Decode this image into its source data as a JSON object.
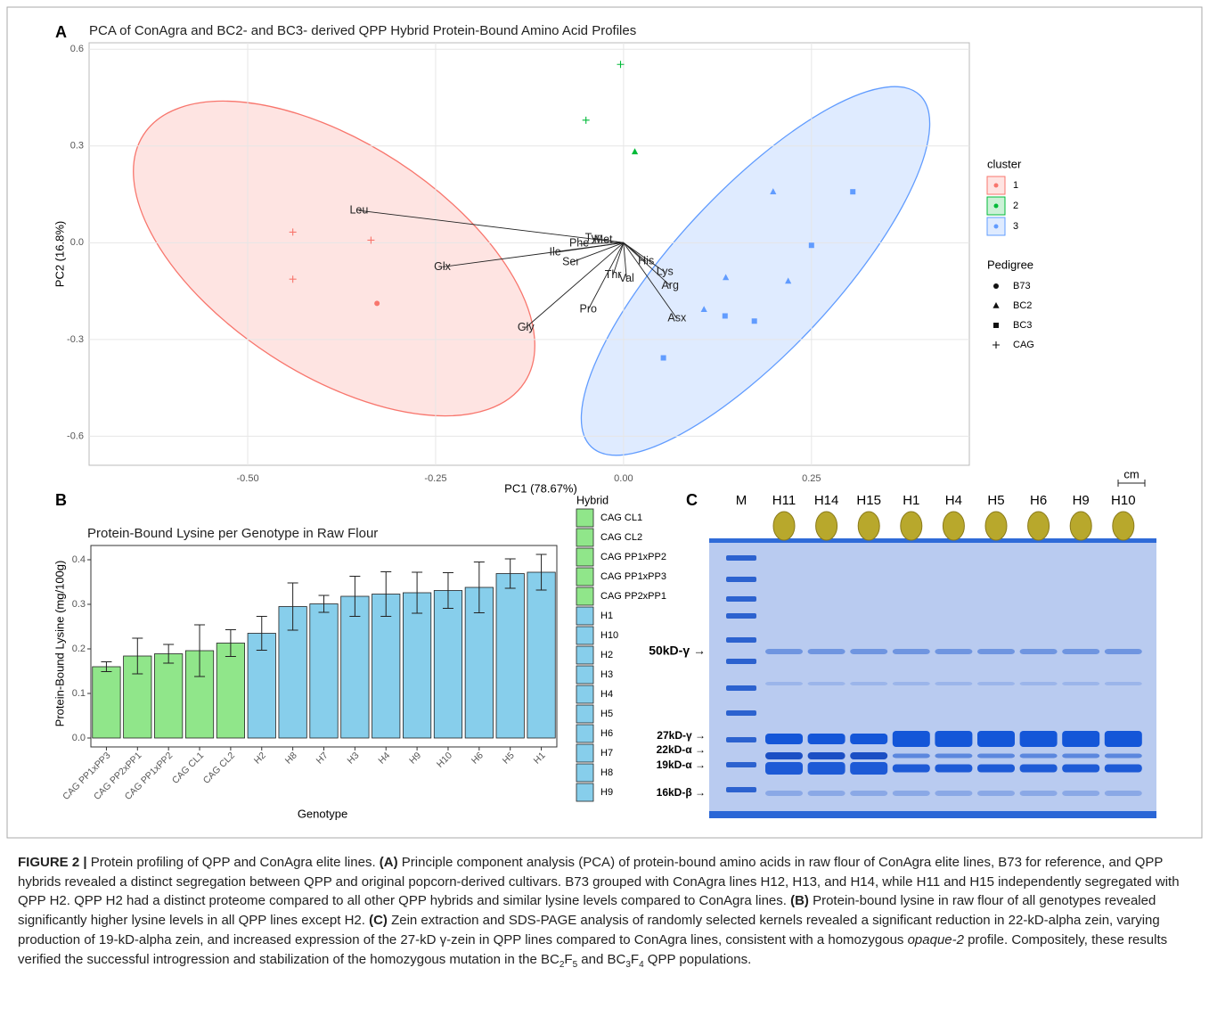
{
  "chart_data": [
    {
      "type": "scatter",
      "panel_label": "A",
      "title": "PCA of ConAgra and BC2- and BC3- derived QPP Hybrid Protein-Bound Amino Acid Profiles",
      "x_label": "PC1 (78.67%)",
      "y_label": "PC2 (16.8%)",
      "xlim": [
        -0.711,
        0.46
      ],
      "ylim": [
        -0.69,
        0.62
      ],
      "xticks": [
        {
          "value": -0.5,
          "label": "-0.50"
        },
        -0.25,
        {
          "value": 0,
          "label": "0.00"
        },
        0.25
      ],
      "yticks": [
        0.6,
        0.3,
        {
          "value": 0,
          "label": "0.0"
        },
        -0.3,
        -0.6
      ],
      "grid": true,
      "cluster_legend": {
        "title": "cluster",
        "entries": [
          {
            "label": "1",
            "color": "#f8766d"
          },
          {
            "label": "2",
            "color": "#00ba38"
          },
          {
            "label": "3",
            "color": "#619cff"
          }
        ]
      },
      "pedigree_legend": {
        "title": "Pedigree",
        "entries": [
          {
            "label": "B73",
            "shape": "circle"
          },
          {
            "label": "BC2",
            "shape": "triangle"
          },
          {
            "label": "BC3",
            "shape": "square"
          },
          {
            "label": "CAG",
            "shape": "plus"
          }
        ]
      },
      "series": [
        {
          "cluster": "1",
          "pedigree": "CAG",
          "x": [
            -0.44,
            -0.336,
            -0.44
          ],
          "y": [
            0.033,
            0.008,
            -0.113
          ]
        },
        {
          "cluster": "1",
          "pedigree": "B73",
          "x": [
            -0.328
          ],
          "y": [
            -0.188
          ]
        },
        {
          "cluster": "2",
          "pedigree": "CAG",
          "x": [
            -0.004,
            -0.05
          ],
          "y": [
            0.553,
            0.38
          ]
        },
        {
          "cluster": "2",
          "pedigree": "BC2",
          "x": [
            0.015
          ],
          "y": [
            0.282
          ]
        },
        {
          "cluster": "3",
          "pedigree": "BC2",
          "x": [
            0.199,
            0.136,
            0.219,
            0.107
          ],
          "y": [
            0.158,
            -0.108,
            -0.119,
            -0.207
          ]
        },
        {
          "cluster": "3",
          "pedigree": "BC3",
          "x": [
            0.305,
            0.25,
            0.135,
            0.174,
            0.053
          ],
          "y": [
            0.158,
            -0.008,
            -0.227,
            -0.243,
            -0.357
          ]
        }
      ],
      "loadings": {
        "labels": [
          "Leu",
          "Glx",
          "Ile",
          "Ser",
          "Phe",
          "Tyr",
          "Met",
          "Thr",
          "Val",
          "Pro",
          "Gly",
          "His",
          "Lys",
          "Arg",
          "Asx"
        ],
        "x": [
          -0.352,
          -0.241,
          -0.091,
          -0.07,
          -0.059,
          -0.041,
          -0.027,
          -0.014,
          0.004,
          -0.047,
          -0.13,
          0.03,
          0.055,
          0.062,
          0.071
        ],
        "y": [
          0.1,
          -0.075,
          -0.03,
          -0.061,
          -0.003,
          0.014,
          0.008,
          -0.1,
          -0.111,
          -0.207,
          -0.263,
          -0.058,
          -0.091,
          -0.133,
          -0.235
        ]
      }
    },
    {
      "type": "bar",
      "panel_label": "B",
      "title": "Protein-Bound Lysine per Genotype in Raw Flour",
      "x_label": "Genotype",
      "y_label": "Protein-Bound Lysine (mg/100g)",
      "ylim": [
        -0.02,
        0.432
      ],
      "yticks": [
        {
          "value": 0,
          "label": "0.0"
        },
        0.1,
        0.2,
        0.3,
        0.4
      ],
      "categories": [
        "CAG PP1xPP3",
        "CAG PP2xPP1",
        "CAG PP1xPP2",
        "CAG CL1",
        "CAG CL2",
        "H2",
        "H8",
        "H7",
        "H3",
        "H4",
        "H9",
        "H10",
        "H6",
        "H5",
        "H1"
      ],
      "values": [
        0.16,
        0.184,
        0.189,
        0.196,
        0.213,
        0.235,
        0.295,
        0.301,
        0.318,
        0.323,
        0.326,
        0.331,
        0.338,
        0.369,
        0.372
      ],
      "errors": [
        0.011,
        0.04,
        0.021,
        0.058,
        0.03,
        0.038,
        0.053,
        0.019,
        0.045,
        0.05,
        0.046,
        0.04,
        0.057,
        0.033,
        0.04
      ],
      "legend": {
        "title": "Hybrid",
        "entries": [
          {
            "name": "CAG CL1",
            "color": "#90e68a"
          },
          {
            "name": "CAG CL2",
            "color": "#90e68a"
          },
          {
            "name": "CAG PP1xPP2",
            "color": "#90e68a"
          },
          {
            "name": "CAG PP1xPP3",
            "color": "#90e68a"
          },
          {
            "name": "CAG PP2xPP1",
            "color": "#90e68a"
          },
          {
            "name": "H1",
            "color": "#87ceeb"
          },
          {
            "name": "H10",
            "color": "#87ceeb"
          },
          {
            "name": "H2",
            "color": "#87ceeb"
          },
          {
            "name": "H3",
            "color": "#87ceeb"
          },
          {
            "name": "H4",
            "color": "#87ceeb"
          },
          {
            "name": "H5",
            "color": "#87ceeb"
          },
          {
            "name": "H6",
            "color": "#87ceeb"
          },
          {
            "name": "H7",
            "color": "#87ceeb"
          },
          {
            "name": "H8",
            "color": "#87ceeb"
          },
          {
            "name": "H9",
            "color": "#87ceeb"
          }
        ]
      }
    }
  ],
  "gel": {
    "panel_label": "C",
    "scale": "cm",
    "lanes": [
      "M",
      "H11",
      "H14",
      "H15",
      "H1",
      "H4",
      "H5",
      "H6",
      "H9",
      "H10"
    ],
    "markers": [
      "50kD-γ →",
      "27kD-γ →",
      "22kD-α →",
      "19kD-α →",
      "16kD-β →"
    ]
  },
  "caption": [
    {
      "text": "FIGURE 2 |",
      "style": "bold"
    },
    {
      "text": " Protein profiling of QPP and ConAgra elite lines. "
    },
    {
      "text": "(A)",
      "style": "bold"
    },
    {
      "text": " Principle component analysis (PCA) of protein-bound amino acids in raw flour of ConAgra elite lines, B73 for reference, and QPP hybrids revealed a distinct segregation between QPP and original popcorn-derived cultivars. B73 grouped with ConAgra lines H12, H13, and H14, while H11 and H15 independently segregated with QPP H2. QPP H2 had a distinct proteome compared to all other QPP hybrids and similar lysine levels compared to ConAgra lines. "
    },
    {
      "text": "(B)",
      "style": "bold"
    },
    {
      "text": " Protein-bound lysine in raw flour of all genotypes revealed significantly higher lysine levels in all QPP lines except H2. "
    },
    {
      "text": "(C)",
      "style": "bold"
    },
    {
      "text": " Zein extraction and SDS-PAGE analysis of randomly selected kernels revealed a significant reduction in 22-kD-alpha zein, varying production of 19-kD-alpha zein, and increased expression of the 27-kD γ-zein in QPP lines compared to ConAgra lines, consistent with a homozygous "
    },
    {
      "text": "opaque-2",
      "style": "italic"
    },
    {
      "text": " profile. Compositely, these results verified the successful introgression and stabilization of the homozygous mutation in the BC"
    },
    {
      "text": "2",
      "style": "sub"
    },
    {
      "text": "F"
    },
    {
      "text": "5",
      "style": "sub"
    },
    {
      "text": " and BC"
    },
    {
      "text": "3",
      "style": "sub"
    },
    {
      "text": "F"
    },
    {
      "text": "4",
      "style": "sub"
    },
    {
      "text": " QPP populations."
    }
  ]
}
